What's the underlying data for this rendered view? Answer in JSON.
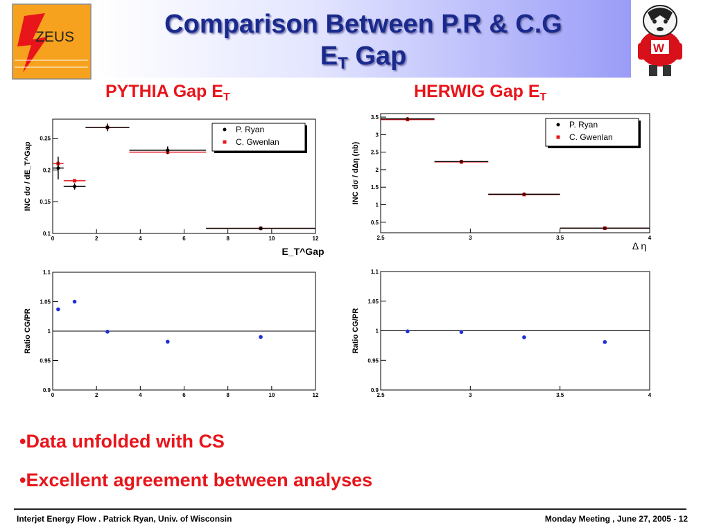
{
  "header": {
    "title_line1": "Comparison Between P.R & C.G",
    "title_line2_main": "E",
    "title_line2_sub": "T",
    "title_line2_rest": " Gap",
    "logo_text": "ZEUS"
  },
  "subheads": [
    {
      "main": "PYTHIA Gap E",
      "sub": "T"
    },
    {
      "main": "HERWIG Gap E",
      "sub": "T"
    }
  ],
  "colors": {
    "pr": "#000000",
    "cg": "#e8151b",
    "ratio": "#1f2fd6",
    "title": "#1a2a8c",
    "accent": "#e8151b"
  },
  "chart_data": [
    {
      "type": "scatter",
      "id": "pythia_xsec",
      "xlabel": "E_T^Gap",
      "ylabel": "INC dσ / dE_T^Gap",
      "xlim": [
        0,
        12
      ],
      "ylim": [
        0.1,
        0.28
      ],
      "xticks": [
        0,
        2,
        4,
        6,
        8,
        10,
        12
      ],
      "yticks": [
        0.1,
        0.15,
        0.2,
        0.25
      ],
      "series": [
        {
          "name": "P. Ryan",
          "points": [
            {
              "x": 0.25,
              "y": 0.203,
              "xerr": [
                0,
                0.5
              ],
              "yerr": 0.018
            },
            {
              "x": 1.0,
              "y": 0.174,
              "xerr": [
                0.5,
                1.5
              ],
              "yerr": 0.005
            },
            {
              "x": 2.5,
              "y": 0.267,
              "xerr": [
                1.5,
                3.5
              ],
              "yerr": 0.006
            },
            {
              "x": 5.25,
              "y": 0.231,
              "xerr": [
                3.5,
                7.0
              ],
              "yerr": 0.006
            },
            {
              "x": 9.5,
              "y": 0.108,
              "xerr": [
                7.0,
                12.0
              ],
              "yerr": 0.003
            }
          ]
        },
        {
          "name": "C. Gwenlan",
          "points": [
            {
              "x": 0.25,
              "y": 0.21,
              "xerr": [
                0,
                0.5
              ]
            },
            {
              "x": 1.0,
              "y": 0.183,
              "xerr": [
                0.5,
                1.5
              ]
            },
            {
              "x": 2.5,
              "y": 0.267,
              "xerr": [
                1.5,
                3.5
              ]
            },
            {
              "x": 5.25,
              "y": 0.228,
              "xerr": [
                3.5,
                7.0
              ]
            },
            {
              "x": 9.5,
              "y": 0.108,
              "xerr": [
                7.0,
                12.0
              ]
            }
          ]
        }
      ],
      "legend": "top-right"
    },
    {
      "type": "scatter",
      "id": "herwig_xsec",
      "xlabel": "Δ η",
      "ylabel": "INC dσ / dΔη (nb)",
      "xlim": [
        2.5,
        4
      ],
      "ylim": [
        0.2,
        3.6
      ],
      "xticks": [
        2.5,
        3,
        3.5,
        4
      ],
      "yticks": [
        0.5,
        1,
        1.5,
        2,
        2.5,
        3,
        3.5
      ],
      "series": [
        {
          "name": "P. Ryan",
          "points": [
            {
              "x": 2.65,
              "y": 3.45,
              "xerr": [
                2.5,
                2.8
              ]
            },
            {
              "x": 2.95,
              "y": 2.23,
              "xerr": [
                2.8,
                3.1
              ]
            },
            {
              "x": 3.3,
              "y": 1.3,
              "xerr": [
                3.1,
                3.5
              ]
            },
            {
              "x": 3.75,
              "y": 0.33,
              "xerr": [
                3.5,
                4.0
              ]
            }
          ]
        },
        {
          "name": "C. Gwenlan",
          "points": [
            {
              "x": 2.65,
              "y": 3.43,
              "xerr": [
                2.5,
                2.8
              ]
            },
            {
              "x": 2.95,
              "y": 2.22,
              "xerr": [
                2.8,
                3.1
              ]
            },
            {
              "x": 3.3,
              "y": 1.29,
              "xerr": [
                3.1,
                3.5
              ]
            },
            {
              "x": 3.75,
              "y": 0.33,
              "xerr": [
                3.5,
                4.0
              ]
            }
          ]
        }
      ],
      "legend": "top-right"
    },
    {
      "type": "scatter",
      "id": "pythia_ratio",
      "ylabel": "Ratio CG/PR",
      "xlim": [
        0,
        12
      ],
      "ylim": [
        0.9,
        1.1
      ],
      "xticks": [
        0,
        2,
        4,
        6,
        8,
        10,
        12
      ],
      "yticks": [
        0.9,
        0.95,
        1,
        1.05,
        1.1
      ],
      "reference_line": 1,
      "points": [
        {
          "x": 0.25,
          "y": 1.037
        },
        {
          "x": 1.0,
          "y": 1.05
        },
        {
          "x": 2.5,
          "y": 0.999
        },
        {
          "x": 5.25,
          "y": 0.982
        },
        {
          "x": 9.5,
          "y": 0.99
        }
      ]
    },
    {
      "type": "scatter",
      "id": "herwig_ratio",
      "ylabel": "Ratio CG/PR",
      "xlim": [
        2.5,
        4
      ],
      "ylim": [
        0.9,
        1.1
      ],
      "xticks": [
        2.5,
        3,
        3.5,
        4
      ],
      "yticks": [
        0.9,
        0.95,
        1,
        1.05,
        1.1
      ],
      "reference_line": 1,
      "points": [
        {
          "x": 2.65,
          "y": 0.999
        },
        {
          "x": 2.95,
          "y": 0.998
        },
        {
          "x": 3.3,
          "y": 0.989
        },
        {
          "x": 3.75,
          "y": 0.981
        }
      ]
    }
  ],
  "bullets": [
    "•Data unfolded with CS",
    "•Excellent agreement between analyses"
  ],
  "footer": {
    "left": "Interjet Energy Flow . Patrick Ryan, Univ. of Wisconsin",
    "right": "Monday Meeting , June 27, 2005 - 12"
  }
}
